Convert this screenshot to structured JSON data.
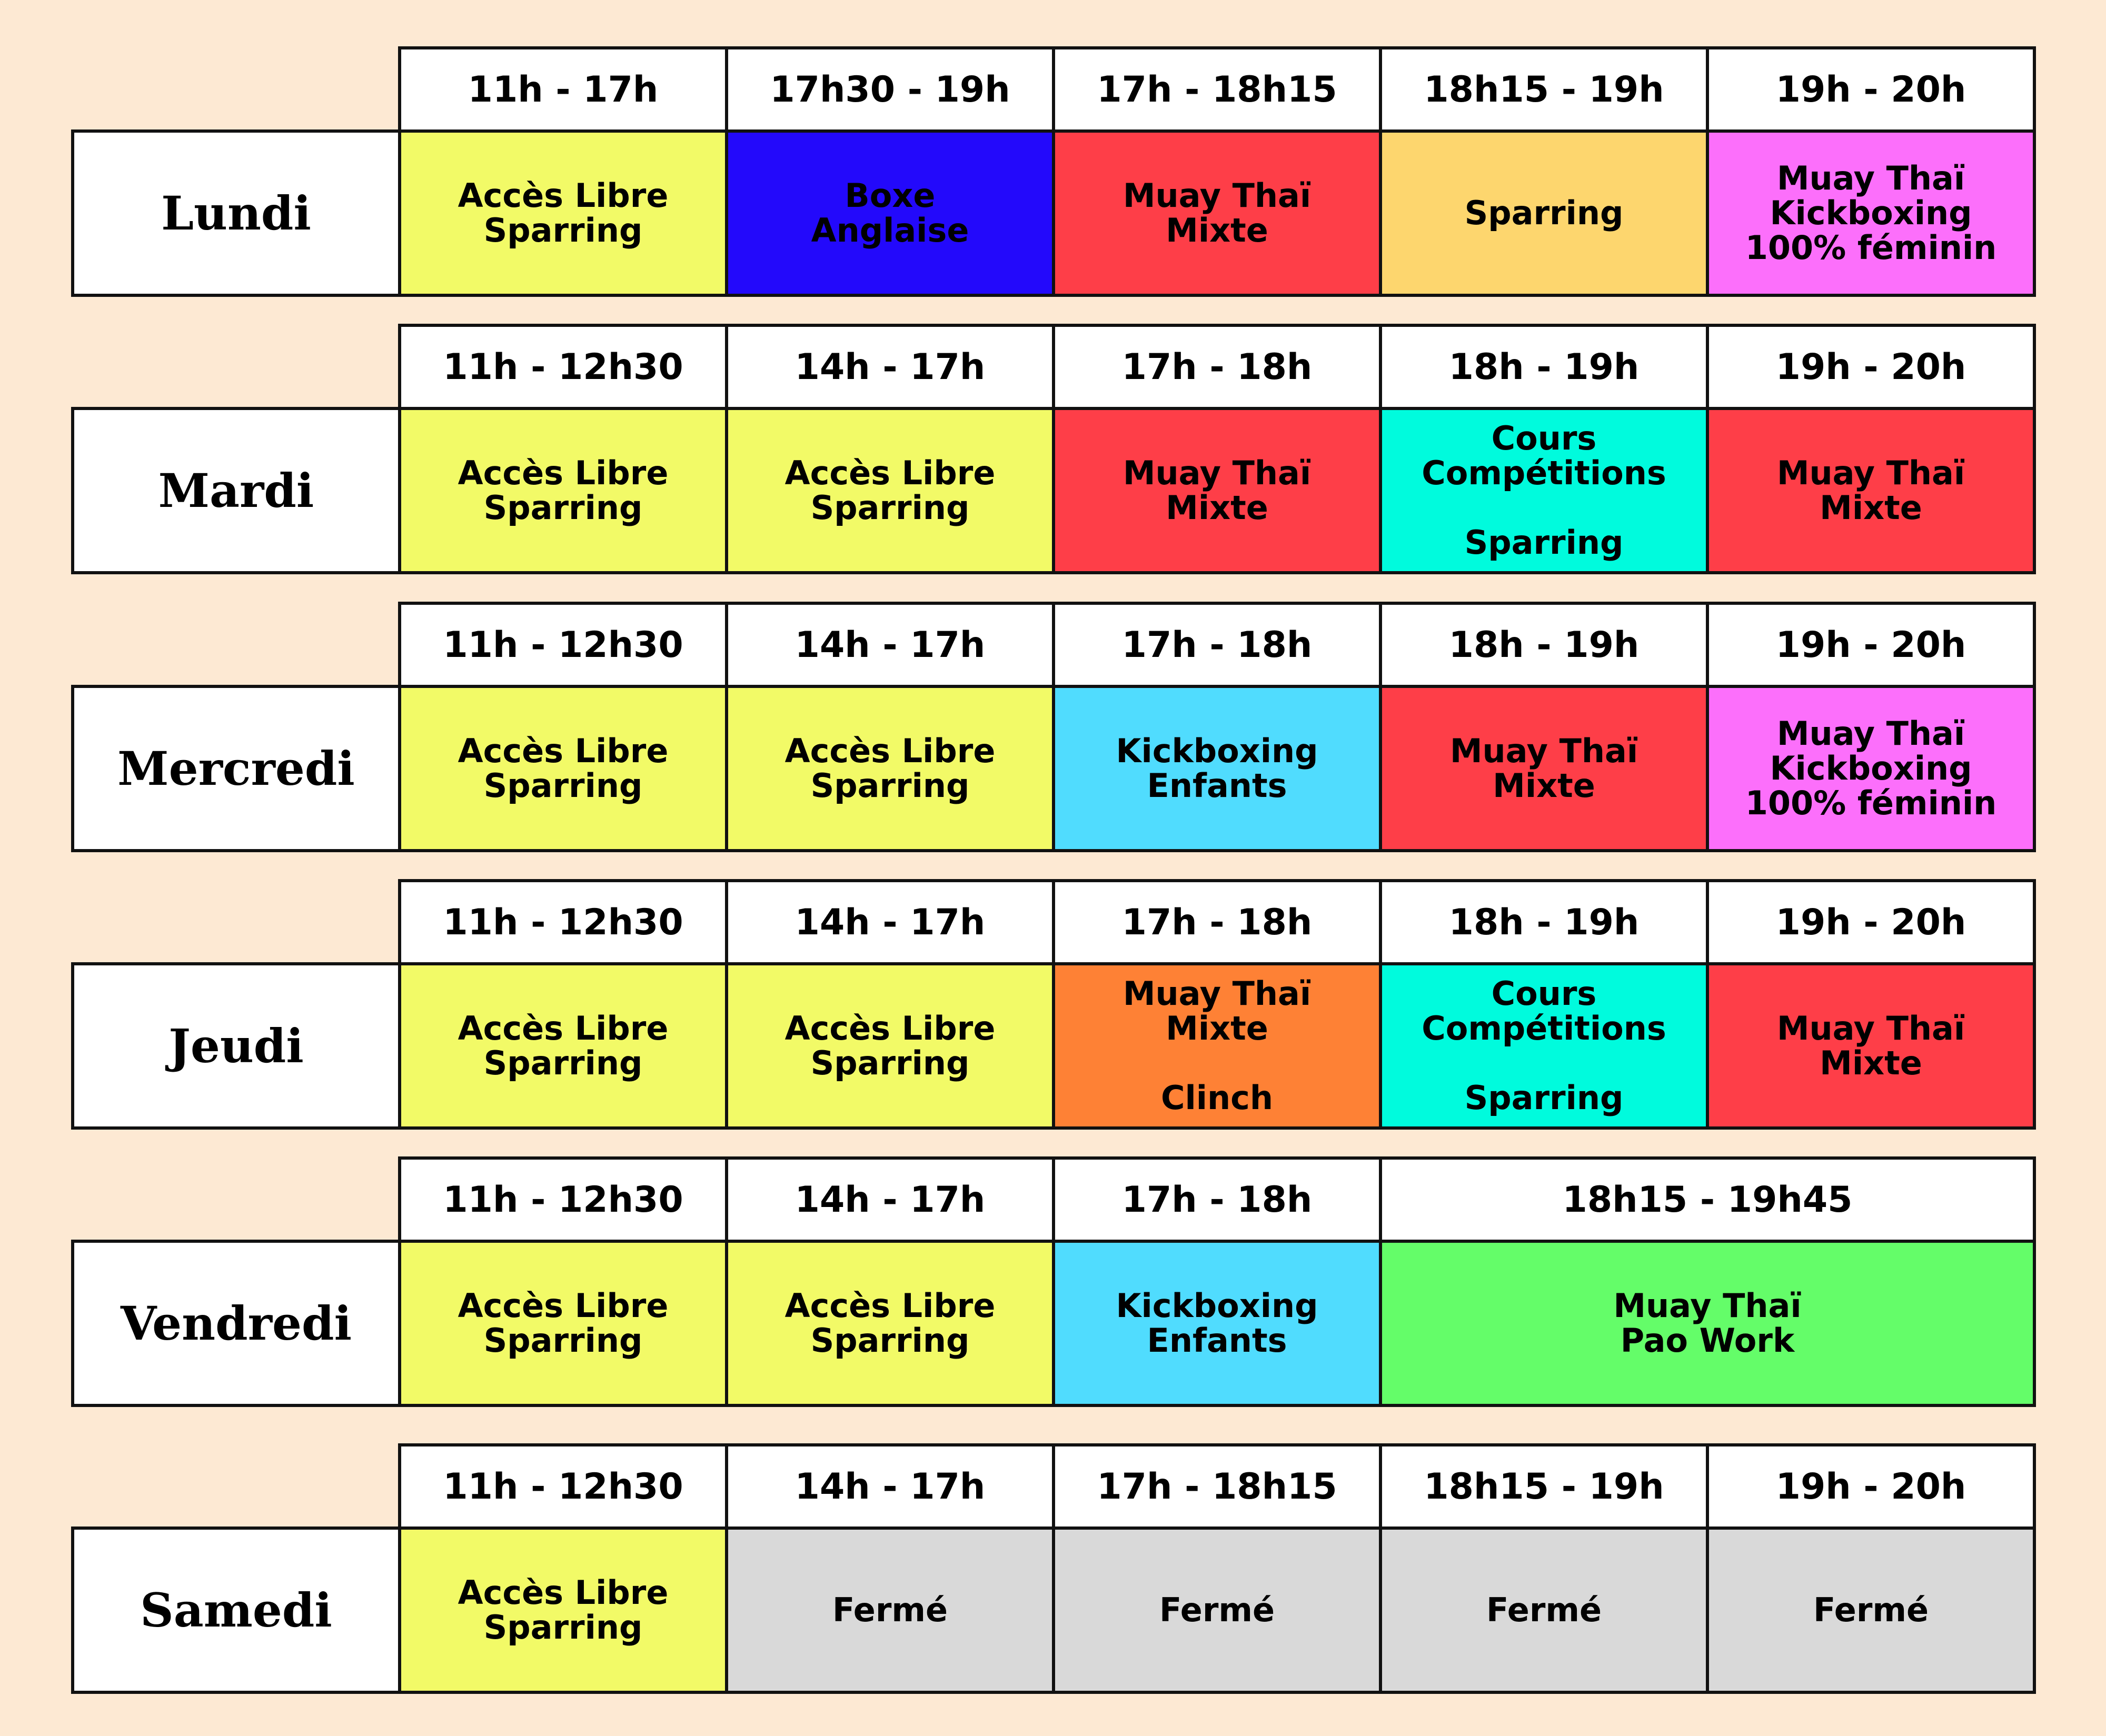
{
  "colors": {
    "page_background": "#fde9d3",
    "yellow": "#f2fa67",
    "blue": "#2309fb",
    "red": "#fe3e48",
    "peach": "#fdd66e",
    "pink": "#fc6ffb",
    "teal": "#00fbdd",
    "cyan": "#50dcfe",
    "orange": "#fe8135",
    "green": "#64fd69",
    "gray": "#d9d9d9"
  },
  "days": [
    {
      "name": "Lundi",
      "slots": [
        {
          "time": "11h - 17h",
          "activity": "Accès Libre\nSparring",
          "color": "#f2fa67"
        },
        {
          "time": "17h30 - 19h",
          "activity": "Boxe\nAnglaise",
          "color": "#2309fb"
        },
        {
          "time": "17h - 18h15",
          "activity": "Muay Thaï\nMixte",
          "color": "#fe3e48"
        },
        {
          "time": "18h15 - 19h",
          "activity": "Sparring",
          "color": "#fdd66e"
        },
        {
          "time": "19h - 20h",
          "activity": "Muay Thaï\nKickboxing\n100% féminin",
          "color": "#fc6ffb"
        }
      ]
    },
    {
      "name": "Mardi",
      "slots": [
        {
          "time": "11h - 12h30",
          "activity": "Accès Libre\nSparring",
          "color": "#f2fa67"
        },
        {
          "time": "14h - 17h",
          "activity": "Accès Libre\nSparring",
          "color": "#f2fa67"
        },
        {
          "time": "17h - 18h",
          "activity": "Muay Thaï\nMixte",
          "color": "#fe3e48"
        },
        {
          "time": "18h - 19h",
          "activity": "Cours\nCompétitions\n\nSparring",
          "color": "#00fbdd"
        },
        {
          "time": "19h - 20h",
          "activity": "Muay Thaï\nMixte",
          "color": "#fe3e48"
        }
      ]
    },
    {
      "name": "Mercredi",
      "slots": [
        {
          "time": "11h - 12h30",
          "activity": "Accès Libre\nSparring",
          "color": "#f2fa67"
        },
        {
          "time": "14h - 17h",
          "activity": "Accès Libre\nSparring",
          "color": "#f2fa67"
        },
        {
          "time": "17h - 18h",
          "activity": "Kickboxing\nEnfants",
          "color": "#50dcfe"
        },
        {
          "time": "18h - 19h",
          "activity": "Muay Thaï\nMixte",
          "color": "#fe3e48"
        },
        {
          "time": "19h - 20h",
          "activity": "Muay Thaï\nKickboxing\n100% féminin",
          "color": "#fc6ffb"
        }
      ]
    },
    {
      "name": "Jeudi",
      "slots": [
        {
          "time": "11h - 12h30",
          "activity": "Accès Libre\nSparring",
          "color": "#f2fa67"
        },
        {
          "time": "14h - 17h",
          "activity": "Accès Libre\nSparring",
          "color": "#f2fa67"
        },
        {
          "time": "17h - 18h",
          "activity": "Muay Thaï\nMixte\n\nClinch",
          "color": "#fe8135"
        },
        {
          "time": "18h - 19h",
          "activity": "Cours\nCompétitions\n\nSparring",
          "color": "#00fbdd"
        },
        {
          "time": "19h - 20h",
          "activity": "Muay Thaï\nMixte",
          "color": "#fe3e48"
        }
      ]
    },
    {
      "name": "Vendredi",
      "slots": [
        {
          "time": "11h - 12h30",
          "activity": "Accès Libre\nSparring",
          "color": "#f2fa67"
        },
        {
          "time": "14h - 17h",
          "activity": "Accès Libre\nSparring",
          "color": "#f2fa67"
        },
        {
          "time": "17h - 18h",
          "activity": "Kickboxing\nEnfants",
          "color": "#50dcfe"
        },
        {
          "time": "18h15 - 19h45",
          "activity": "Muay Thaï\nPao Work",
          "color": "#64fd69",
          "span": 2
        }
      ]
    },
    {
      "name": "Samedi",
      "slots": [
        {
          "time": "11h - 12h30",
          "activity": "Accès Libre\nSparring",
          "color": "#f2fa67"
        },
        {
          "time": "14h - 17h",
          "activity": "Fermé",
          "color": "#d9d9d9"
        },
        {
          "time": "17h - 18h15",
          "activity": "Fermé",
          "color": "#d9d9d9"
        },
        {
          "time": "18h15 - 19h",
          "activity": "Fermé",
          "color": "#d9d9d9"
        },
        {
          "time": "19h - 20h",
          "activity": "Fermé",
          "color": "#d9d9d9"
        }
      ]
    }
  ]
}
